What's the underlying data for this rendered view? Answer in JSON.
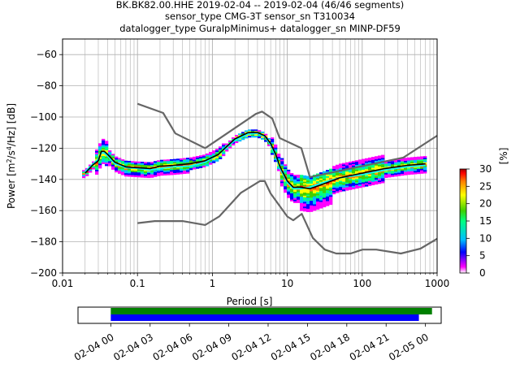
{
  "chart_data": [
    {
      "type": "heatmap",
      "title_lines": [
        "BK.BK82.00.HHE   2019-02-04 -- 2019-02-04  (46/46 segments)",
        "sensor_type CMG-3T sensor_sn T310034",
        "datalogger_type GuralpMinimus+ datalogger_sn MINP-DF59"
      ],
      "xlabel": "Period [s]",
      "ylabel_parts": [
        "Power [m",
        "2",
        "/s",
        "4",
        "/Hz] [dB]"
      ],
      "x_scale": "log",
      "xlim": [
        0.01,
        1000
      ],
      "ylim": [
        -200,
        -50
      ],
      "x_ticks": [
        {
          "value": 0.01,
          "label": "0.01"
        },
        {
          "value": 0.1,
          "label": "0.1"
        },
        {
          "value": 1,
          "label": "1"
        },
        {
          "value": 10,
          "label": "10"
        },
        {
          "value": 100,
          "label": "100"
        },
        {
          "value": 1000,
          "label": "1000"
        }
      ],
      "y_ticks": [
        {
          "value": -60,
          "label": "−60"
        },
        {
          "value": -80,
          "label": "−80"
        },
        {
          "value": -100,
          "label": "−100"
        },
        {
          "value": -120,
          "label": "−120"
        },
        {
          "value": -140,
          "label": "−140"
        },
        {
          "value": -160,
          "label": "−160"
        },
        {
          "value": -180,
          "label": "−180"
        },
        {
          "value": -200,
          "label": "−200"
        }
      ],
      "grid": true,
      "colorbar": {
        "label": "[%]",
        "range": [
          0,
          30
        ],
        "ticks": [
          {
            "value": 0,
            "label": "0"
          },
          {
            "value": 5,
            "label": "5"
          },
          {
            "value": 10,
            "label": "10"
          },
          {
            "value": 15,
            "label": "15"
          },
          {
            "value": 20,
            "label": "20"
          },
          {
            "value": 25,
            "label": "25"
          },
          {
            "value": 30,
            "label": "30"
          }
        ]
      },
      "nhnm": {
        "x": [
          0.1,
          0.22,
          0.32,
          0.8,
          3.8,
          4.6,
          6.3,
          7.9,
          15.4,
          20,
          354.8,
          1000
        ],
        "y": [
          -91.5,
          -97.4,
          -110.5,
          -120,
          -98,
          -96.5,
          -101,
          -113.5,
          -120,
          -138.5,
          -126,
          -112
        ]
      },
      "nlnm": {
        "x": [
          0.1,
          0.17,
          0.4,
          0.8,
          1.24,
          2.4,
          4.3,
          5.0,
          6.0,
          10.0,
          12.0,
          15.6,
          21.9,
          31.6,
          45.0,
          70.0,
          101.0,
          154.0,
          328.0,
          600.0,
          1000
        ],
        "y": [
          -168,
          -166.7,
          -166.7,
          -169.2,
          -163.7,
          -148.6,
          -141.1,
          -141.1,
          -149,
          -163.8,
          -166.2,
          -162.1,
          -177.5,
          -185,
          -187.5,
          -187.5,
          -185,
          -185,
          -187.5,
          -184.4,
          -178
        ]
      },
      "mode": {
        "x": [
          0.02,
          0.025,
          0.03,
          0.033,
          0.036,
          0.04,
          0.05,
          0.07,
          0.1,
          0.15,
          0.2,
          0.3,
          0.5,
          0.8,
          1.2,
          2,
          3,
          4,
          5,
          6,
          7,
          8,
          10,
          12,
          15,
          20,
          30,
          50,
          100,
          200,
          400,
          700
        ],
        "y": [
          -136,
          -131,
          -128,
          -122,
          -122,
          -124,
          -129,
          -132,
          -132.5,
          -133,
          -131.5,
          -131,
          -130,
          -128,
          -124,
          -114,
          -110,
          -110,
          -112,
          -117,
          -124,
          -132,
          -141,
          -145,
          -145,
          -146,
          -143,
          -139,
          -136,
          -133,
          -131,
          -130
        ]
      },
      "mean": {
        "x": [
          0.02,
          0.025,
          0.03,
          0.033,
          0.036,
          0.04,
          0.05,
          0.07,
          0.1,
          0.15,
          0.2,
          0.3,
          0.5,
          0.8,
          1.2,
          2,
          3,
          4,
          5,
          6,
          7,
          8,
          10,
          12,
          15,
          20,
          30,
          50,
          100,
          200,
          400,
          700
        ],
        "y": [
          -135,
          -130.5,
          -127,
          -123,
          -123,
          -125,
          -130,
          -132.5,
          -133,
          -134,
          -133,
          -132,
          -131.5,
          -129,
          -124,
          -115,
          -111,
          -110.5,
          -112.5,
          -118,
          -125,
          -133,
          -142,
          -146,
          -146,
          -145,
          -142,
          -139,
          -137,
          -134,
          -132,
          -131
        ]
      }
    },
    {
      "type": "timeline",
      "x_ticks": [
        "02-04 00",
        "02-04 03",
        "02-04 06",
        "02-04 09",
        "02-04 12",
        "02-04 15",
        "02-04 18",
        "02-04 21",
        "02-05 00"
      ],
      "x_range_hours": [
        -2.5,
        25.2
      ],
      "bars": [
        {
          "color": "#008000",
          "start_hour": 0,
          "end_hour": 24.5
        },
        {
          "color": "#0000ff",
          "start_hour": 0,
          "end_hour": 23.5
        }
      ]
    }
  ],
  "colors": {
    "nm_line": "#666666",
    "mode_line": "#000000",
    "mean_line": "#00ffff",
    "grid": "#b0b0b0",
    "cmap": [
      "#ffffff",
      "#ff00ff",
      "#0000ff",
      "#00bfff",
      "#00ff80",
      "#40d000",
      "#ffff00",
      "#ff8000",
      "#ff0000",
      "#a00000"
    ]
  }
}
